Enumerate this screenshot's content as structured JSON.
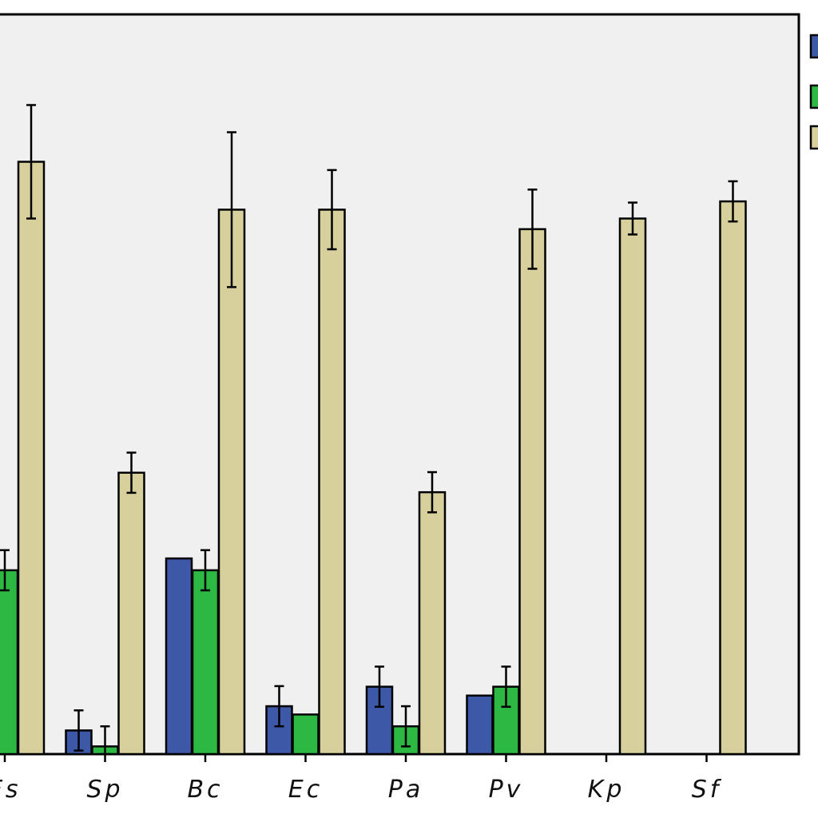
{
  "chart_data": {
    "type": "bar",
    "categories": [
      "Fs",
      "Sp",
      "Bc",
      "Ec",
      "Pa",
      "Pv",
      "Kp",
      "Sf"
    ],
    "ylim": [
      0,
      1
    ],
    "grid": false,
    "legend_position": "top-right (partially cropped)",
    "series": [
      {
        "color": "#3E58A8",
        "values": [
          null,
          0.04,
          0.331,
          0.081,
          0.114,
          0.099,
          null,
          null
        ],
        "errors": [
          null,
          0.034,
          null,
          0.034,
          0.034,
          null,
          null,
          null
        ]
      },
      {
        "color": "#2DB843",
        "values": [
          0.311,
          0.013,
          0.311,
          0.067,
          0.047,
          0.114,
          null,
          null
        ],
        "errors": [
          0.034,
          0.034,
          0.034,
          null,
          0.034,
          0.034,
          null,
          null
        ]
      },
      {
        "color": "#D8D09C",
        "values": [
          1.002,
          0.476,
          0.921,
          0.921,
          0.443,
          0.888,
          0.906,
          0.935
        ],
        "errors": [
          0.096,
          0.034,
          0.131,
          0.067,
          0.034,
          0.067,
          0.027,
          0.034
        ]
      }
    ]
  }
}
